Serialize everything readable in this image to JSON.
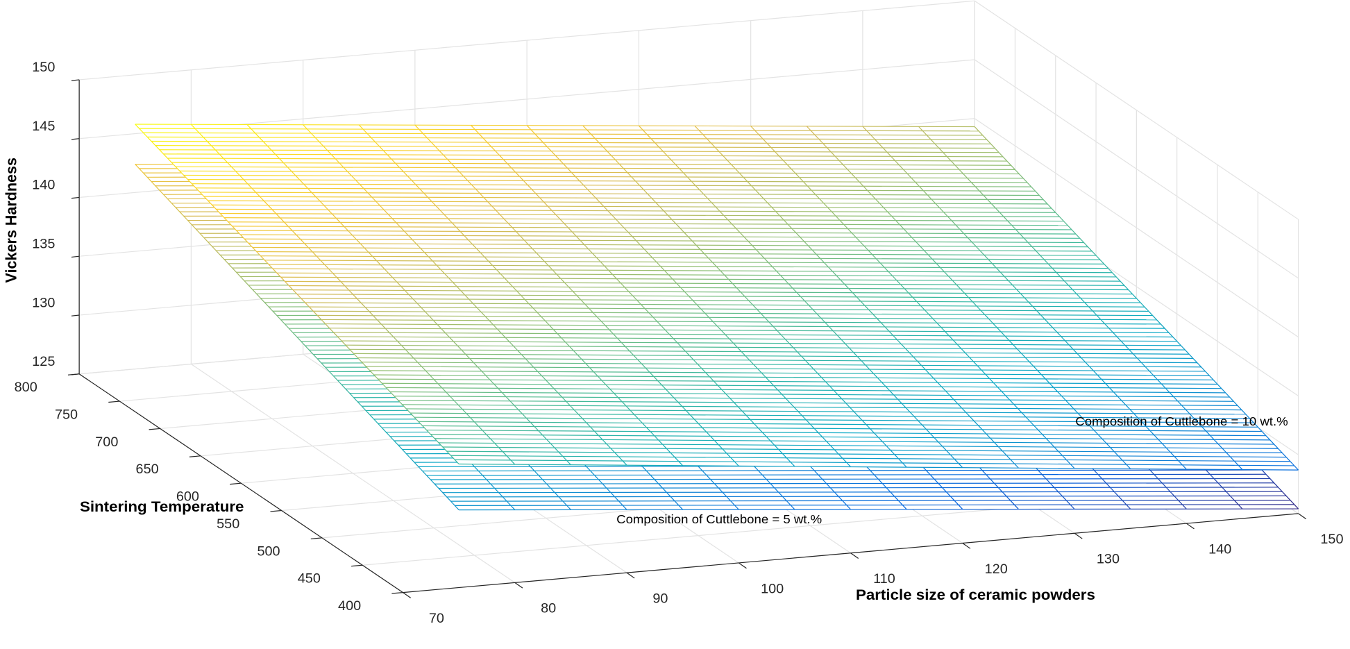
{
  "chart_data": {
    "type": "surface",
    "xlabel": "Particle size of ceramic powders",
    "ylabel": "Sintering Temperature",
    "zlabel": "Vickers Hardness",
    "x": [
      75,
      150
    ],
    "y": [
      400,
      800
    ],
    "series": [
      {
        "name": "Composition of Cuttlebone = 5 wt.%",
        "z": [
          [
            131.6,
            125.4
          ],
          [
            142.4,
            136.2
          ]
        ]
      },
      {
        "name": "Composition of Cuttlebone = 10 wt.%",
        "z": [
          [
            135.5,
            128.7
          ],
          [
            145.8,
            139.3
          ]
        ]
      }
    ],
    "xlim": [
      70,
      150
    ],
    "ylim": [
      400,
      800
    ],
    "zlim": [
      125,
      150
    ],
    "xticks": [
      70,
      80,
      90,
      100,
      110,
      120,
      130,
      140,
      150
    ],
    "yticks": [
      400,
      450,
      500,
      550,
      600,
      650,
      700,
      750,
      800
    ],
    "zticks": [
      125,
      130,
      135,
      140,
      145,
      150
    ],
    "colormap": "parula",
    "grid": true
  }
}
